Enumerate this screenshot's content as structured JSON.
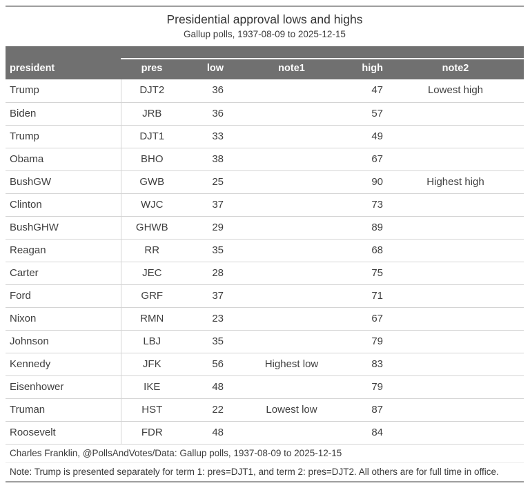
{
  "table": {
    "title": "Presidential approval lows and highs",
    "subtitle": "Gallup polls, 1937-08-09 to 2025-12-15",
    "columns": [
      "president",
      "pres",
      "low",
      "note1",
      "high",
      "note2"
    ],
    "rows": [
      {
        "president": "Trump",
        "pres": "DJT2",
        "low": "36",
        "note1": "",
        "high": "47",
        "note2": "Lowest high"
      },
      {
        "president": "Biden",
        "pres": "JRB",
        "low": "36",
        "note1": "",
        "high": "57",
        "note2": ""
      },
      {
        "president": "Trump",
        "pres": "DJT1",
        "low": "33",
        "note1": "",
        "high": "49",
        "note2": ""
      },
      {
        "president": "Obama",
        "pres": "BHO",
        "low": "38",
        "note1": "",
        "high": "67",
        "note2": ""
      },
      {
        "president": "BushGW",
        "pres": "GWB",
        "low": "25",
        "note1": "",
        "high": "90",
        "note2": "Highest high"
      },
      {
        "president": "Clinton",
        "pres": "WJC",
        "low": "37",
        "note1": "",
        "high": "73",
        "note2": ""
      },
      {
        "president": "BushGHW",
        "pres": "GHWB",
        "low": "29",
        "note1": "",
        "high": "89",
        "note2": ""
      },
      {
        "president": "Reagan",
        "pres": "RR",
        "low": "35",
        "note1": "",
        "high": "68",
        "note2": ""
      },
      {
        "president": "Carter",
        "pres": "JEC",
        "low": "28",
        "note1": "",
        "high": "75",
        "note2": ""
      },
      {
        "president": "Ford",
        "pres": "GRF",
        "low": "37",
        "note1": "",
        "high": "71",
        "note2": ""
      },
      {
        "president": "Nixon",
        "pres": "RMN",
        "low": "23",
        "note1": "",
        "high": "67",
        "note2": ""
      },
      {
        "president": "Johnson",
        "pres": "LBJ",
        "low": "35",
        "note1": "",
        "high": "79",
        "note2": ""
      },
      {
        "president": "Kennedy",
        "pres": "JFK",
        "low": "56",
        "note1": "Highest low",
        "high": "83",
        "note2": ""
      },
      {
        "president": "Eisenhower",
        "pres": "IKE",
        "low": "48",
        "note1": "",
        "high": "79",
        "note2": ""
      },
      {
        "president": "Truman",
        "pres": "HST",
        "low": "22",
        "note1": "Lowest low",
        "high": "87",
        "note2": ""
      },
      {
        "president": "Roosevelt",
        "pres": "FDR",
        "low": "48",
        "note1": "",
        "high": "84",
        "note2": ""
      }
    ],
    "source_note": "Charles Franklin, @PollsAndVotes/Data: Gallup polls, 1937-08-09 to 2025-12-15",
    "footnote": "Note: Trump is presented separately for term 1: pres=DJT1, and term 2: pres=DJT2. All others are for full time in office."
  },
  "colors": {
    "header_bg": "#707070",
    "header_text": "#ffffff",
    "row_border": "#d4d4d4",
    "outer_rule": "#9e9e9e",
    "body_text": "#3e3e3e",
    "spanner_rule": "#ffffff"
  },
  "chart_data": {
    "type": "table",
    "title": "Presidential approval lows and highs",
    "subtitle": "Gallup polls, 1937-08-09 to 2025-12-15",
    "columns": [
      "president",
      "pres",
      "low",
      "note1",
      "high",
      "note2"
    ],
    "rows": [
      [
        "Trump",
        "DJT2",
        36,
        "",
        47,
        "Lowest high"
      ],
      [
        "Biden",
        "JRB",
        36,
        "",
        57,
        ""
      ],
      [
        "Trump",
        "DJT1",
        33,
        "",
        49,
        ""
      ],
      [
        "Obama",
        "BHO",
        38,
        "",
        67,
        ""
      ],
      [
        "BushGW",
        "GWB",
        25,
        "",
        90,
        "Highest high"
      ],
      [
        "Clinton",
        "WJC",
        37,
        "",
        73,
        ""
      ],
      [
        "BushGHW",
        "GHWB",
        29,
        "",
        89,
        ""
      ],
      [
        "Reagan",
        "RR",
        35,
        "",
        68,
        ""
      ],
      [
        "Carter",
        "JEC",
        28,
        "",
        75,
        ""
      ],
      [
        "Ford",
        "GRF",
        37,
        "",
        71,
        ""
      ],
      [
        "Nixon",
        "RMN",
        23,
        "",
        67,
        ""
      ],
      [
        "Johnson",
        "LBJ",
        35,
        "",
        79,
        ""
      ],
      [
        "Kennedy",
        "JFK",
        56,
        "Highest low",
        83,
        ""
      ],
      [
        "Eisenhower",
        "IKE",
        48,
        "",
        79,
        ""
      ],
      [
        "Truman",
        "HST",
        22,
        "Lowest low",
        87,
        ""
      ],
      [
        "Roosevelt",
        "FDR",
        48,
        "",
        84,
        ""
      ]
    ],
    "source_note": "Charles Franklin, @PollsAndVotes/Data: Gallup polls, 1937-08-09 to 2025-12-15",
    "footnote": "Note: Trump is presented separately for term 1: pres=DJT1, and term 2: pres=DJT2. All others are for full time in office."
  }
}
